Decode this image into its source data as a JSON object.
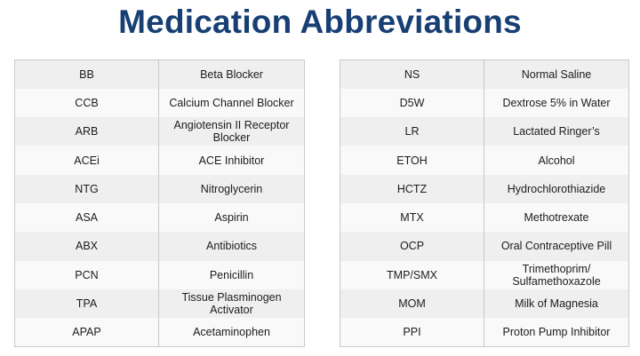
{
  "title": "Medication Abbreviations",
  "left_table": [
    {
      "abbr": "BB",
      "meaning": "Beta Blocker"
    },
    {
      "abbr": "CCB",
      "meaning": "Calcium Channel Blocker"
    },
    {
      "abbr": "ARB",
      "meaning": "Angiotensin II Receptor Blocker"
    },
    {
      "abbr": "ACEi",
      "meaning": "ACE Inhibitor"
    },
    {
      "abbr": "NTG",
      "meaning": "Nitroglycerin"
    },
    {
      "abbr": "ASA",
      "meaning": "Aspirin"
    },
    {
      "abbr": "ABX",
      "meaning": "Antibiotics"
    },
    {
      "abbr": "PCN",
      "meaning": "Penicillin"
    },
    {
      "abbr": "TPA",
      "meaning": "Tissue Plasminogen Activator"
    },
    {
      "abbr": "APAP",
      "meaning": "Acetaminophen"
    }
  ],
  "right_table": [
    {
      "abbr": "NS",
      "meaning": "Normal Saline"
    },
    {
      "abbr": "D5W",
      "meaning": "Dextrose 5% in Water"
    },
    {
      "abbr": "LR",
      "meaning": "Lactated Ringer’s"
    },
    {
      "abbr": "ETOH",
      "meaning": "Alcohol"
    },
    {
      "abbr": "HCTZ",
      "meaning": "Hydrochlorothiazide"
    },
    {
      "abbr": "MTX",
      "meaning": "Methotrexate"
    },
    {
      "abbr": "OCP",
      "meaning": "Oral Contraceptive Pill"
    },
    {
      "abbr": "TMP/SMX",
      "meaning": "Trimethoprim/ Sulfamethoxazole"
    },
    {
      "abbr": "MOM",
      "meaning": "Milk of Magnesia"
    },
    {
      "abbr": "PPI",
      "meaning": "Proton Pump Inhibitor"
    }
  ],
  "colors": {
    "title": "#173f74",
    "row_odd": "#efefef",
    "row_even": "#f9f9f9",
    "border": "#c9c9c9"
  }
}
